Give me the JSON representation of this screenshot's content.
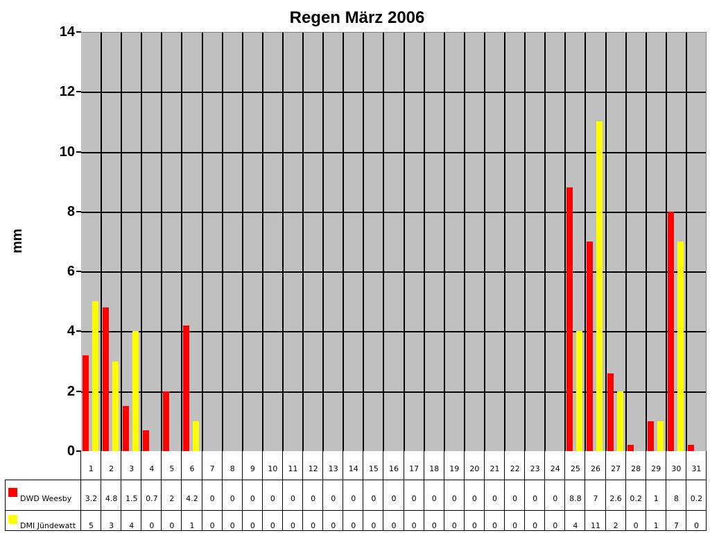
{
  "chart_data": {
    "type": "bar",
    "title": "Regen März 2006",
    "xlabel": "",
    "ylabel": "mm",
    "ylim": [
      0,
      14
    ],
    "yticks": [
      0,
      2,
      4,
      6,
      8,
      10,
      12,
      14
    ],
    "grid": true,
    "legend_position": "data-table-left",
    "categories": [
      "1",
      "2",
      "3",
      "4",
      "5",
      "6",
      "7",
      "8",
      "9",
      "10",
      "11",
      "12",
      "13",
      "14",
      "15",
      "16",
      "17",
      "18",
      "19",
      "20",
      "21",
      "22",
      "23",
      "24",
      "25",
      "26",
      "27",
      "28",
      "29",
      "30",
      "31"
    ],
    "series": [
      {
        "name": "DWD Weesby",
        "color": "#ff0000",
        "values": [
          3.2,
          4.8,
          1.5,
          0.7,
          2,
          4.2,
          0,
          0,
          0,
          0,
          0,
          0,
          0,
          0,
          0,
          0,
          0,
          0,
          0,
          0,
          0,
          0,
          0,
          0,
          8.8,
          7,
          2.6,
          0.2,
          1,
          8,
          0.2
        ]
      },
      {
        "name": "DMI Jündewatt",
        "color": "#ffff00",
        "values": [
          5,
          3,
          4,
          0,
          0,
          1,
          0,
          0,
          0,
          0,
          0,
          0,
          0,
          0,
          0,
          0,
          0,
          0,
          0,
          0,
          0,
          0,
          0,
          0,
          4,
          11,
          2,
          0,
          1,
          7,
          0
        ]
      }
    ]
  },
  "style": {
    "plot_bg": "#c0c0c0",
    "grid_color": "#000000"
  }
}
